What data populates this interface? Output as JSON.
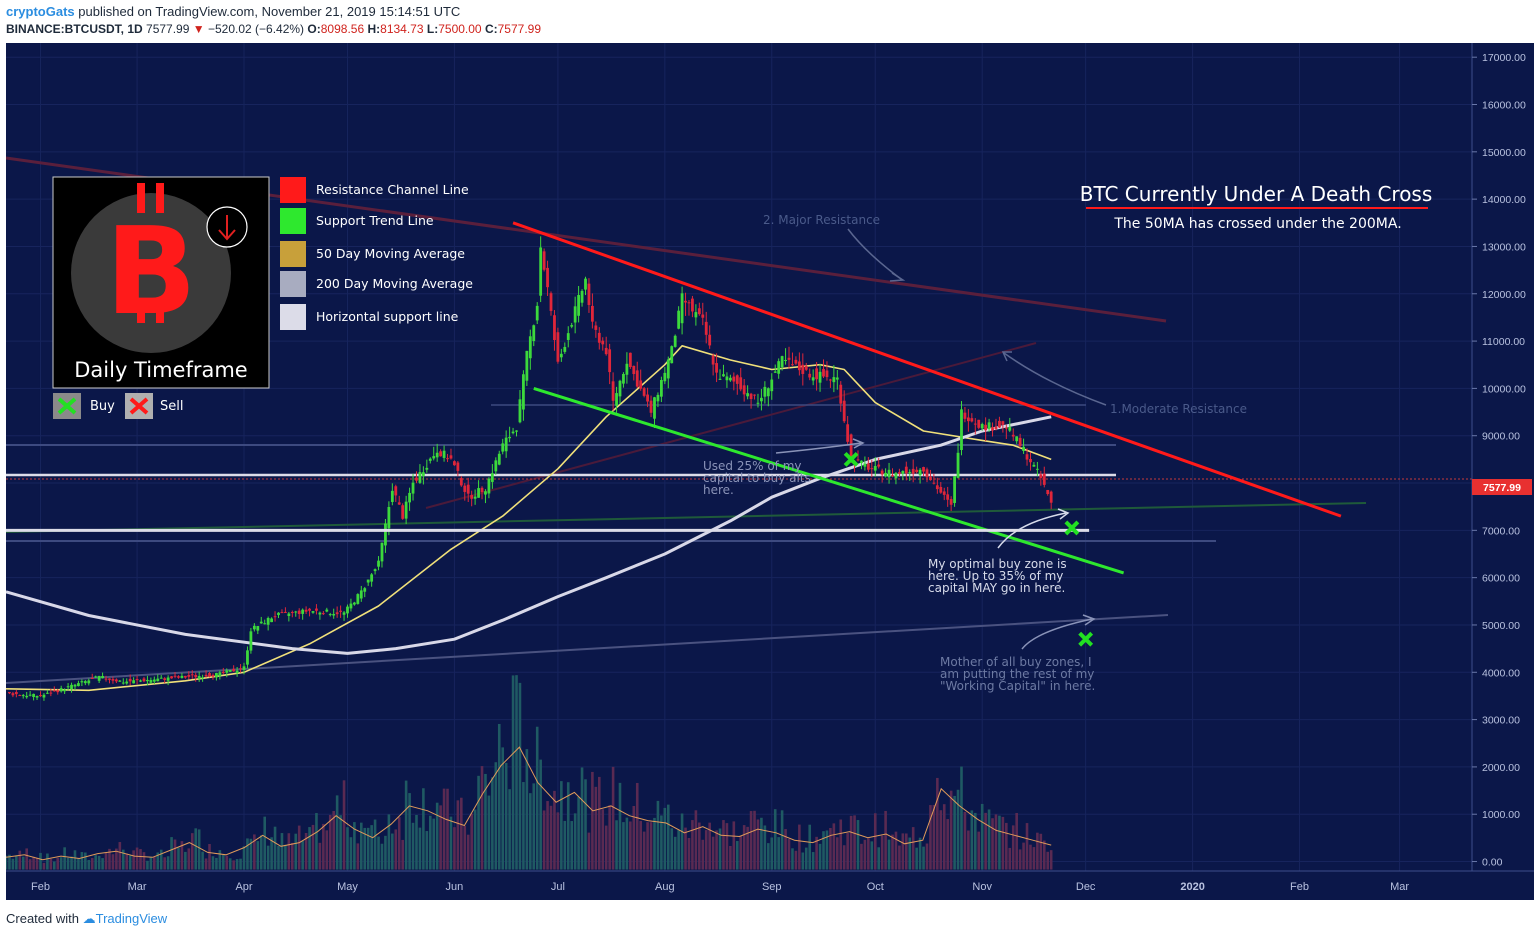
{
  "header": {
    "author": "cryptoGats",
    "published": "published on TradingView.com, November 21, 2019 15:14:51 UTC",
    "symbol": "BINANCE:BTCUSDT, 1D",
    "last": "7577.99",
    "change": "−520.02 (−6.42%)",
    "open_label": "O:",
    "open": "8098.56",
    "high_label": "H:",
    "high": "8134.73",
    "low_label": "L:",
    "low": "7500.00",
    "close_label": "C:",
    "close": "7577.99"
  },
  "footer": {
    "created_with": "Created with",
    "brand": "TradingView"
  },
  "colors": {
    "background": "#0b1749",
    "resistance": "#ff1a1a",
    "support": "#2ee82e",
    "ma50": "#f0e07a",
    "ma200": "#d8d8e8",
    "horizontal": "#ffffff",
    "bull": "#3cd93c",
    "bear": "#e0263a",
    "price_tag": "#e83030"
  },
  "legend": {
    "items": [
      {
        "label": "Resistance Channel Line",
        "color": "#ff1a1a"
      },
      {
        "label": "Support Trend Line",
        "color": "#2ee82e"
      },
      {
        "label": "50 Day Moving Average",
        "color": "#c8a03a"
      },
      {
        "label": "200 Day Moving Average",
        "color": "#a8acc0"
      },
      {
        "label": "Horizontal support line",
        "color": "#dcdce8"
      }
    ],
    "badge_text": "Daily Timeframe",
    "logo_letter": "B",
    "buy_label": "Buy",
    "sell_label": "Sell"
  },
  "annotations": {
    "title": "BTC Currently Under A Death Cross",
    "subtitle": "The 50MA has crossed under the 200MA.",
    "major_resistance": "2. Major Resistance",
    "moderate_resistance": "1.Moderate Resistance",
    "used_capital": [
      "Used 25% of my",
      "capital to buy alts",
      "here."
    ],
    "optimal_zone": [
      "My optimal buy zone is",
      "here. Up to 35% of my",
      "capital MAY go in here."
    ],
    "mother_zone": [
      "Mother of all buy zones, I",
      "am putting the rest of my",
      "\"Working Capital\" in here."
    ]
  },
  "chart_data": {
    "type": "candlestick",
    "title": "BINANCE:BTCUSDT, 1D",
    "y_axis": {
      "ticks": [
        0,
        1000,
        2000,
        3000,
        4000,
        5000,
        6000,
        7000,
        8000,
        9000,
        10000,
        11000,
        12000,
        13000,
        14000,
        15000,
        16000,
        17000
      ],
      "tick_labels": [
        "0.00",
        "1000.00",
        "2000.00",
        "3000.00",
        "4000.00",
        "5000.00",
        "6000.00",
        "7000.00",
        "8000.00",
        "9000.00",
        "10000.00",
        "11000.00",
        "12000.00",
        "13000.00",
        "14000.00",
        "15000.00",
        "16000.00",
        "17000.00"
      ],
      "range": [
        -200,
        17300
      ]
    },
    "x_axis": {
      "tick_labels": [
        "Feb",
        "Mar",
        "Apr",
        "May",
        "Jun",
        "Jul",
        "Aug",
        "Sep",
        "Oct",
        "Nov",
        "Dec",
        "2020",
        "Feb",
        "Mar"
      ],
      "tick_dates": [
        "2019-02-01",
        "2019-03-01",
        "2019-04-01",
        "2019-05-01",
        "2019-06-01",
        "2019-07-01",
        "2019-08-01",
        "2019-09-01",
        "2019-10-01",
        "2019-11-01",
        "2019-12-01",
        "2020-01-01",
        "2020-02-01",
        "2020-03-01"
      ],
      "range": [
        "2019-01-22",
        "2020-03-22"
      ]
    },
    "last_price_label": "7577.99",
    "close_price_path": [
      [
        "2019-01-22",
        3550
      ],
      [
        "2019-02-01",
        3500
      ],
      [
        "2019-02-08",
        3660
      ],
      [
        "2019-02-18",
        3900
      ],
      [
        "2019-02-25",
        3800
      ],
      [
        "2019-03-01",
        3820
      ],
      [
        "2019-03-15",
        3900
      ],
      [
        "2019-03-25",
        3960
      ],
      [
        "2019-04-01",
        4100
      ],
      [
        "2019-04-03",
        4900
      ],
      [
        "2019-04-10",
        5200
      ],
      [
        "2019-04-20",
        5300
      ],
      [
        "2019-04-30",
        5250
      ],
      [
        "2019-05-05",
        5700
      ],
      [
        "2019-05-10",
        6300
      ],
      [
        "2019-05-14",
        7900
      ],
      [
        "2019-05-17",
        7300
      ],
      [
        "2019-05-20",
        8000
      ],
      [
        "2019-05-27",
        8700
      ],
      [
        "2019-05-31",
        8500
      ],
      [
        "2019-06-05",
        7700
      ],
      [
        "2019-06-10",
        7900
      ],
      [
        "2019-06-15",
        8800
      ],
      [
        "2019-06-19",
        9200
      ],
      [
        "2019-06-22",
        10700
      ],
      [
        "2019-06-25",
        11800
      ],
      [
        "2019-06-26",
        13000
      ],
      [
        "2019-06-28",
        12100
      ],
      [
        "2019-07-01",
        10500
      ],
      [
        "2019-07-04",
        11200
      ],
      [
        "2019-07-09",
        12300
      ],
      [
        "2019-07-11",
        11300
      ],
      [
        "2019-07-15",
        10800
      ],
      [
        "2019-07-17",
        9700
      ],
      [
        "2019-07-21",
        10600
      ],
      [
        "2019-07-28",
        9500
      ],
      [
        "2019-08-03",
        10800
      ],
      [
        "2019-08-06",
        11900
      ],
      [
        "2019-08-12",
        11400
      ],
      [
        "2019-08-16",
        10300
      ],
      [
        "2019-08-22",
        10100
      ],
      [
        "2019-08-28",
        9700
      ],
      [
        "2019-09-04",
        10600
      ],
      [
        "2019-09-12",
        10300
      ],
      [
        "2019-09-20",
        10200
      ],
      [
        "2019-09-24",
        8500
      ],
      [
        "2019-09-30",
        8300
      ],
      [
        "2019-10-07",
        8200
      ],
      [
        "2019-10-15",
        8300
      ],
      [
        "2019-10-23",
        7500
      ],
      [
        "2019-10-25",
        8700
      ],
      [
        "2019-10-26",
        9500
      ],
      [
        "2019-11-01",
        9200
      ],
      [
        "2019-11-08",
        9200
      ],
      [
        "2019-11-13",
        8700
      ],
      [
        "2019-11-18",
        8100
      ],
      [
        "2019-11-21",
        7578
      ]
    ],
    "series": [
      {
        "name": "50 Day Moving Average",
        "color": "#f0e07a",
        "values": [
          [
            "2019-01-22",
            3650
          ],
          [
            "2019-02-15",
            3620
          ],
          [
            "2019-03-15",
            3820
          ],
          [
            "2019-04-01",
            4000
          ],
          [
            "2019-04-20",
            4600
          ],
          [
            "2019-05-10",
            5400
          ],
          [
            "2019-05-31",
            6600
          ],
          [
            "2019-06-15",
            7300
          ],
          [
            "2019-07-01",
            8300
          ],
          [
            "2019-07-15",
            9400
          ],
          [
            "2019-08-01",
            10500
          ],
          [
            "2019-08-06",
            10900
          ],
          [
            "2019-08-20",
            10600
          ],
          [
            "2019-09-01",
            10400
          ],
          [
            "2019-09-15",
            10500
          ],
          [
            "2019-09-22",
            10400
          ],
          [
            "2019-10-01",
            9700
          ],
          [
            "2019-10-15",
            9100
          ],
          [
            "2019-11-01",
            8900
          ],
          [
            "2019-11-10",
            8800
          ],
          [
            "2019-11-21",
            8500
          ]
        ]
      },
      {
        "name": "200 Day Moving Average",
        "color": "#d8d8e8",
        "values": [
          [
            "2019-01-22",
            5700
          ],
          [
            "2019-02-15",
            5200
          ],
          [
            "2019-03-15",
            4800
          ],
          [
            "2019-04-15",
            4500
          ],
          [
            "2019-05-01",
            4400
          ],
          [
            "2019-05-15",
            4500
          ],
          [
            "2019-06-01",
            4700
          ],
          [
            "2019-06-15",
            5100
          ],
          [
            "2019-07-01",
            5600
          ],
          [
            "2019-07-15",
            6000
          ],
          [
            "2019-08-01",
            6500
          ],
          [
            "2019-08-20",
            7200
          ],
          [
            "2019-09-01",
            7700
          ],
          [
            "2019-09-15",
            8100
          ],
          [
            "2019-10-01",
            8500
          ],
          [
            "2019-10-20",
            8800
          ],
          [
            "2019-11-01",
            9100
          ],
          [
            "2019-11-21",
            9400
          ]
        ]
      },
      {
        "name": "Resistance Channel Line",
        "color": "#ff1a1a",
        "values": [
          [
            "2019-06-18",
            13500
          ],
          [
            "2020-02-13",
            7300
          ]
        ]
      },
      {
        "name": "Support Trend Line",
        "color": "#2ee82e",
        "values": [
          [
            "2019-06-24",
            10000
          ],
          [
            "2019-12-12",
            6100
          ]
        ]
      },
      {
        "name": "Horizontal support line",
        "color": "#dcdce8",
        "values": [
          [
            "2019-01-22",
            7000
          ],
          [
            "2019-12-02",
            7000
          ]
        ]
      }
    ],
    "volume": {
      "y_ticks_shared": true,
      "heights_rel": [
        0.1,
        0.12,
        0.08,
        0.11,
        0.09,
        0.13,
        0.15,
        0.11,
        0.1,
        0.16,
        0.22,
        0.14,
        0.12,
        0.18,
        0.28,
        0.19,
        0.22,
        0.31,
        0.44,
        0.33,
        0.26,
        0.37,
        0.52,
        0.48,
        0.41,
        0.36,
        0.62,
        0.85,
        1.0,
        0.71,
        0.55,
        0.63,
        0.48,
        0.52,
        0.44,
        0.4,
        0.38,
        0.3,
        0.35,
        0.28,
        0.27,
        0.33,
        0.3,
        0.24,
        0.22,
        0.28,
        0.31,
        0.26,
        0.29,
        0.21,
        0.24,
        0.66,
        0.52,
        0.41,
        0.32,
        0.28,
        0.24,
        0.2
      ]
    },
    "markers": [
      {
        "type": "buy",
        "date": "2019-09-24",
        "value": 8500
      },
      {
        "type": "buy",
        "date": "2019-11-27",
        "value": 7050
      },
      {
        "type": "buy",
        "date": "2019-12-01",
        "value": 4700
      }
    ],
    "grid": true
  }
}
